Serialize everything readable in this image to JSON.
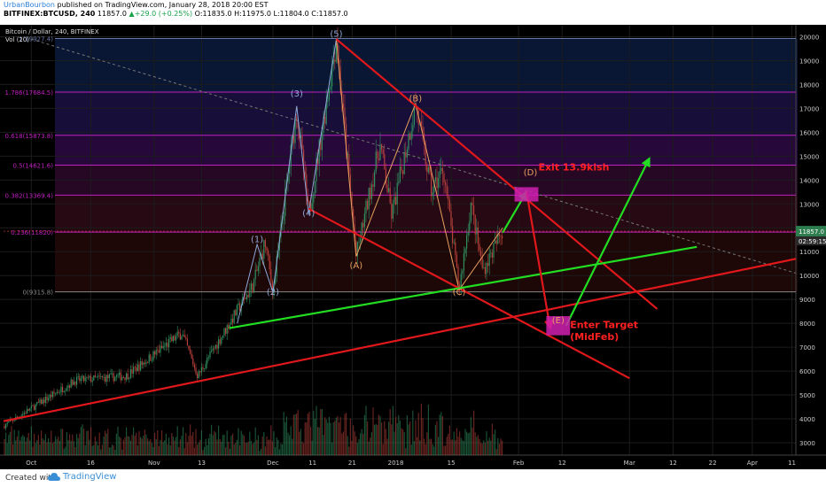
{
  "header": {
    "author": "UrbanBourbon",
    "published": "published on TradingView.com, January 28, 2018 20:00 EST",
    "symbol_line_prefix": "BITFINEX:BTCUSD, 240",
    "last": "11857.0",
    "change": "+29.0 (+0.25%)",
    "ohlc": "O:11835.0 H:11975.0 L:11804.0 C:11857.0"
  },
  "footer": {
    "made_with": "Created with",
    "brand": "TradingView"
  },
  "colors": {
    "background": "#000000",
    "grid": "#1c1c1c",
    "wave_primary": "#8fa8d8",
    "wave_corrective": "#e8a060",
    "trend_red": "#e0181c",
    "trend_green": "#22dd22",
    "fib_magenta": "#c020c0",
    "candle_up": "#2f8f5f",
    "candle_down": "#b8403a",
    "annotation_red": "#ff2020"
  },
  "chart_data": {
    "type": "candlestick",
    "title": "Bitcoin / Dollar, 240, BITFINEX",
    "indicator_label": "Vol (20)",
    "ylim": [
      3000,
      20500
    ],
    "y_ticks": [
      3000,
      4000,
      5000,
      6000,
      7000,
      8000,
      9000,
      10000,
      11000,
      12000,
      13000,
      14000,
      15000,
      16000,
      17000,
      18000,
      19000,
      20000
    ],
    "x_ticks": [
      "Oct",
      "16",
      "Nov",
      "13",
      "Dec",
      "11",
      "21",
      "2018",
      "15",
      "Feb",
      "12",
      "Mar",
      "12",
      "22",
      "Apr",
      "11"
    ],
    "price_label": "11857.0",
    "countdown_label": "02:59:15",
    "fib_levels": [
      {
        "label": "1(19927.4)",
        "value": 19927.4
      },
      {
        "label": "1.786(17684.5)",
        "value": 17684.5
      },
      {
        "label": "0.618(15873.8)",
        "value": 15873.8
      },
      {
        "label": "0.5(14621.6)",
        "value": 14621.6
      },
      {
        "label": "0.382(13369.4)",
        "value": 13369.4
      },
      {
        "label": "0.236(11820)",
        "value": 11820
      },
      {
        "label": "0(9315.8)",
        "value": 9315.8
      }
    ],
    "wave_labels": [
      {
        "text": "(1)",
        "x": "2017-11-27",
        "y": 11400
      },
      {
        "text": "(2)",
        "x": "2017-12-01",
        "y": 9200
      },
      {
        "text": "(3)",
        "x": "2017-12-07",
        "y": 17500
      },
      {
        "text": "(4)",
        "x": "2017-12-10",
        "y": 12500
      },
      {
        "text": "(5)",
        "x": "2017-12-17",
        "y": 20000
      },
      {
        "text": "(A)",
        "x": "2017-12-22",
        "y": 10300
      },
      {
        "text": "(B)",
        "x": "2018-01-06",
        "y": 17300
      },
      {
        "text": "(C)",
        "x": "2018-01-17",
        "y": 9200
      },
      {
        "text": "(D)",
        "x": "2018-02-04",
        "y": 14200
      },
      {
        "text": "(E)",
        "x": "2018-02-11",
        "y": 8000
      }
    ],
    "annotations": [
      {
        "text": "Exit 13.9kish",
        "x": "2018-02-06",
        "y": 14400
      },
      {
        "text": "Enter Target",
        "x": "2018-02-14",
        "y": 7800
      },
      {
        "text": "(MidFeb)",
        "x": "2018-02-14",
        "y": 7300
      }
    ]
  }
}
